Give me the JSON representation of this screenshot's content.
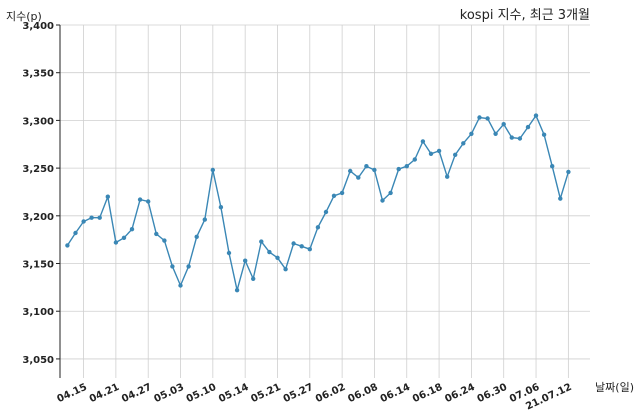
{
  "chart_data": {
    "type": "line",
    "title": "kospi 지수, 최근 3개월",
    "xlabel": "날짜(일)",
    "ylabel": "지수(p)",
    "ylim": [
      3030,
      3400
    ],
    "y_ticks": [
      3050,
      3100,
      3150,
      3200,
      3250,
      3300,
      3350,
      3400
    ],
    "y_tick_labels": [
      "3,050",
      "3,100",
      "3,150",
      "3,200",
      "3,250",
      "3,300",
      "3,350",
      "3,400"
    ],
    "x_tick_labels": [
      "04.15",
      "04.21",
      "04.27",
      "05.03",
      "05.10",
      "05.14",
      "05.21",
      "05.27",
      "06.02",
      "06.08",
      "06.14",
      "06.18",
      "06.24",
      "06.30",
      "07.06",
      "21.07.12"
    ],
    "x_tick_index": [
      2,
      6,
      10,
      14,
      18,
      22,
      26,
      30,
      34,
      38,
      42,
      46,
      50,
      54,
      58,
      62
    ],
    "grid": true,
    "color": "#3a87b5",
    "series": [
      {
        "values": [
          3169,
          3182,
          3194,
          3198,
          3198,
          3220,
          3172,
          3177,
          3186,
          3217,
          3215,
          3181,
          3174,
          3147,
          3127,
          3147,
          3178,
          3196,
          3248,
          3209,
          3161,
          3122,
          3153,
          3134,
          3173,
          3162,
          3156,
          3144,
          3171,
          3168,
          3165,
          3188,
          3204,
          3221,
          3224,
          3247,
          3240,
          3252,
          3248,
          3216,
          3224,
          3249,
          3252,
          3259,
          3278,
          3265,
          3268,
          3241,
          3264,
          3276,
          3286,
          3303,
          3302,
          3286,
          3296,
          3282,
          3281,
          3293,
          3305,
          3285,
          3252,
          3218,
          3246
        ]
      }
    ]
  }
}
